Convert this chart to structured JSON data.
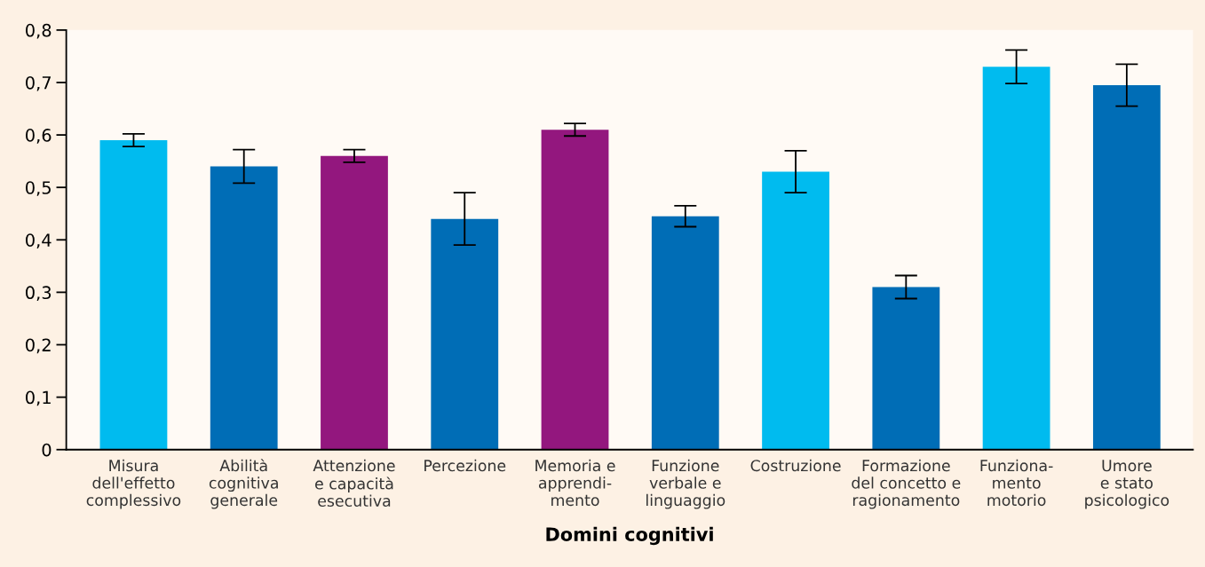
{
  "chart_data": {
    "type": "bar",
    "xlabel": "Domini cognitivi",
    "categories": [
      "Misura\ndell'effetto\ncomplessivo",
      "Abilità\ncognitiva\ngenerale",
      "Attenzione\ne capacità\nesecutiva",
      "Percezione",
      "Memoria e\napprendi-\nmento",
      "Funzione\nverbale e\nlinguaggio",
      "Costruzione",
      "Formazione\ndel concetto e\nragionamento",
      "Funziona-\nmento\nmotorio",
      "Umore\ne stato\npsicologico"
    ],
    "values": [
      0.59,
      0.54,
      0.56,
      0.44,
      0.61,
      0.445,
      0.53,
      0.31,
      0.73,
      0.695
    ],
    "errors": [
      0.012,
      0.032,
      0.012,
      0.05,
      0.012,
      0.02,
      0.04,
      0.022,
      0.032,
      0.04
    ],
    "colors": [
      "#00bbef",
      "#006db6",
      "#93177e",
      "#006db6",
      "#93177e",
      "#006db6",
      "#00bbef",
      "#006db6",
      "#00bbef",
      "#006db6"
    ],
    "ylim": [
      0,
      0.8
    ],
    "yticks": [
      {
        "value": 0,
        "label": "0"
      },
      {
        "value": 0.1,
        "label": "0,1"
      },
      {
        "value": 0.2,
        "label": "0,2"
      },
      {
        "value": 0.3,
        "label": "0,3"
      },
      {
        "value": 0.4,
        "label": "0,4"
      },
      {
        "value": 0.5,
        "label": "0,5"
      },
      {
        "value": 0.6,
        "label": "0,6"
      },
      {
        "value": 0.7,
        "label": "0,7"
      },
      {
        "value": 0.8,
        "label": "0,8"
      }
    ],
    "grid": false,
    "legend": false
  }
}
